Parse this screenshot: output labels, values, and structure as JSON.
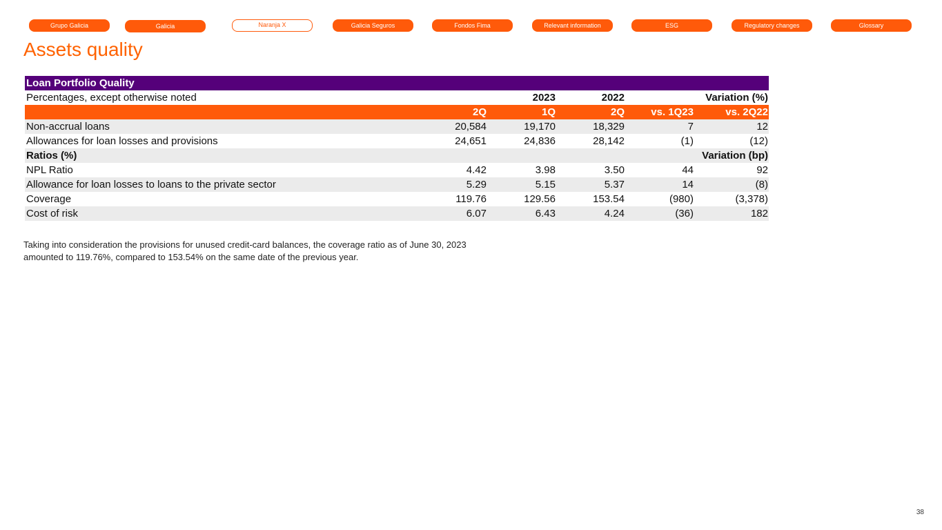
{
  "nav": [
    "Grupo Galicia",
    "Galicia",
    "Naranja X",
    "Galicia Seguros",
    "Fondos Fima",
    "Relevant information",
    "ESG",
    "Regulatory changes",
    "Glossary"
  ],
  "title": "Assets quality",
  "table": {
    "title": "Loan Portfolio Quality",
    "subheader": {
      "label": "Percentages, except otherwise noted",
      "cells": [
        null,
        "2023",
        "2022",
        null,
        "Variation (%)"
      ]
    },
    "columns": [
      "2Q",
      "1Q",
      "2Q",
      "vs. 1Q23",
      "vs. 2Q22"
    ],
    "rows": [
      [
        "Non-accrual loans",
        "20,584",
        "19,170",
        "18,329",
        "7",
        "12"
      ],
      [
        "Allowances for loan losses and provisions",
        "24,651",
        "24,836",
        "28,142",
        "(1)",
        "(12)"
      ]
    ],
    "section": {
      "label": "Ratios (%)",
      "note": "Variation (bp)"
    },
    "ratio_rows": [
      [
        "NPL Ratio",
        "4.42",
        "3.98",
        "3.50",
        "44",
        "92"
      ],
      [
        "Allowance for loan losses to loans to the private sector",
        "5.29",
        "5.15",
        "5.37",
        "14",
        "(8)"
      ],
      [
        "Coverage",
        "119.76",
        "129.56",
        "153.54",
        "(980)",
        "(3,378)"
      ],
      [
        "Cost of risk",
        "6.07",
        "6.43",
        "4.24",
        "(36)",
        "182"
      ]
    ]
  },
  "footnote": [
    "Taking into consideration the provisions for unused credit-card balances, the coverage ratio as of June 30, 2023",
    "amounted to 119.76%, compared to 153.54% on the same date of the previous year."
  ],
  "page_number": "38"
}
